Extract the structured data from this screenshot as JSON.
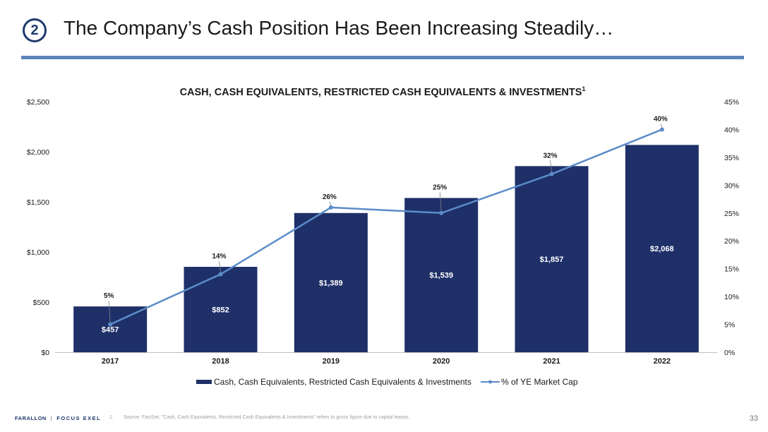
{
  "header": {
    "section_number": "2",
    "title": "The Company’s Cash Position Has Been Increasing Steadily…"
  },
  "colors": {
    "bar": "#1f3069",
    "line": "#5b8cc8",
    "rule": "#5b86b9",
    "accent": "#1f3a6e"
  },
  "chart_data": {
    "type": "bar",
    "title": "CASH, CASH EQUIVALENTS, RESTRICTED CASH EQUIVALENTS & INVESTMENTS",
    "title_superscript": "1",
    "categories": [
      "2017",
      "2018",
      "2019",
      "2020",
      "2021",
      "2022"
    ],
    "series": [
      {
        "name": "Cash, Cash Equivalents, Restricted Cash Equivalents & Investments",
        "type": "bar",
        "axis": "left",
        "values": [
          457,
          852,
          1389,
          1539,
          1857,
          2068
        ],
        "labels": [
          "$457",
          "$852",
          "$1,389",
          "$1,539",
          "$1,857",
          "$2,068"
        ]
      },
      {
        "name": "% of YE Market Cap",
        "type": "line",
        "axis": "right",
        "values": [
          5,
          14,
          26,
          25,
          32,
          40
        ],
        "labels": [
          "5%",
          "14%",
          "26%",
          "25%",
          "32%",
          "40%"
        ]
      }
    ],
    "y_left": {
      "range": [
        0,
        2500
      ],
      "ticks": [
        0,
        500,
        1000,
        1500,
        2000,
        2500
      ],
      "tick_labels": [
        "$0",
        "$500",
        "$1,000",
        "$1,500",
        "$2,000",
        "$2,500"
      ]
    },
    "y_right": {
      "range": [
        0,
        45
      ],
      "ticks": [
        0,
        5,
        10,
        15,
        20,
        25,
        30,
        35,
        40,
        45
      ],
      "tick_labels": [
        "0%",
        "5%",
        "10%",
        "15%",
        "20%",
        "25%",
        "30%",
        "35%",
        "40%",
        "45%"
      ]
    },
    "grid": false,
    "legend": "bottom"
  },
  "footer": {
    "brand_left": "FARALLON",
    "separator": "|",
    "brand_right": "FOCUS EXEL",
    "footnote_number": "1.",
    "footnote_text": "Source: FactSet. \"Cash, Cash Equivalents, Restricted Cash Equivalents & Investments\" refers to gross figure due to capital leases.",
    "page_number": "33"
  }
}
